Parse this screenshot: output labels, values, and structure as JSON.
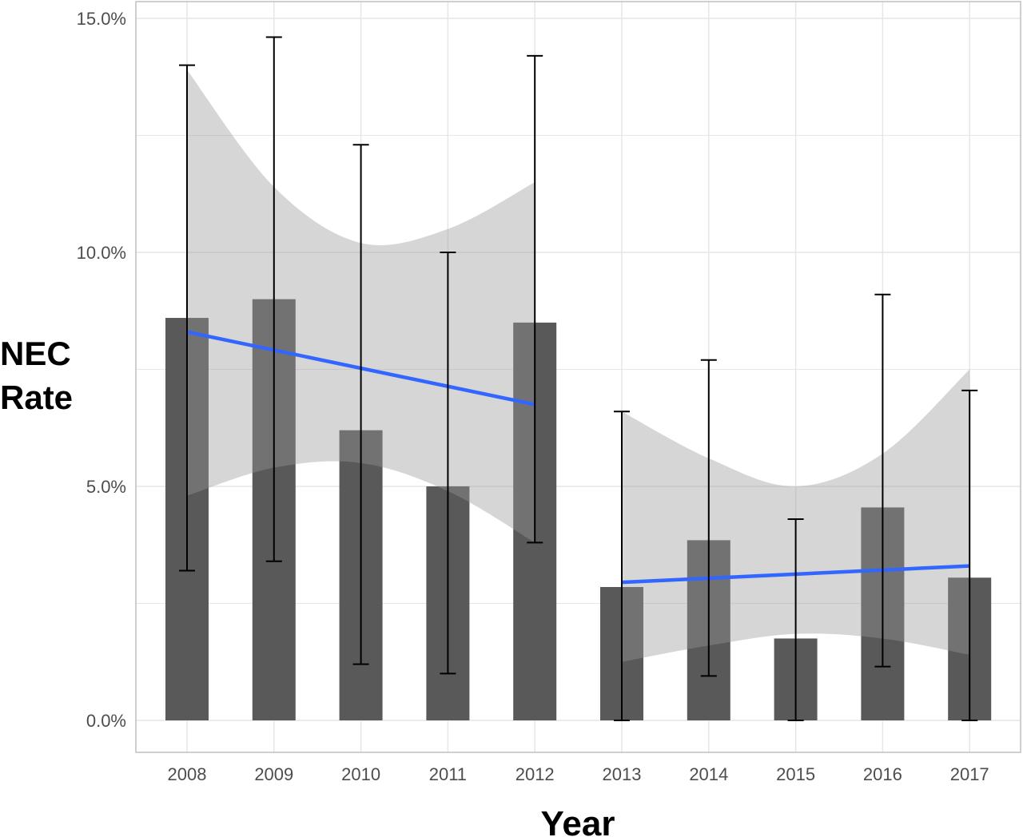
{
  "chart_data": {
    "type": "bar",
    "xlabel": "Year",
    "ylabel": "NEC Rate",
    "ylabel_lines": [
      "NEC",
      "Rate"
    ],
    "ylim": [
      -0.7,
      15.3
    ],
    "y_ticks": [
      0,
      5,
      10,
      15
    ],
    "y_tick_labels": [
      "0.0%",
      "5.0%",
      "10.0%",
      "15.0%"
    ],
    "grid": true,
    "categories": [
      "2008",
      "2009",
      "2010",
      "2011",
      "2012",
      "2013",
      "2014",
      "2015",
      "2016",
      "2017"
    ],
    "values": [
      8.6,
      9.0,
      6.2,
      5.0,
      8.5,
      2.85,
      3.85,
      1.75,
      4.55,
      3.05
    ],
    "error_bars": {
      "lower": [
        3.2,
        3.4,
        1.2,
        1.0,
        3.8,
        0.0,
        0.95,
        0.0,
        1.15,
        0.0
      ],
      "upper": [
        14.0,
        14.6,
        12.3,
        10.0,
        14.2,
        6.6,
        7.7,
        4.3,
        9.1,
        7.05
      ]
    },
    "trend_segments": [
      {
        "x": [
          "2008",
          "2012"
        ],
        "fit": [
          8.3,
          6.75
        ],
        "ci_lower": [
          4.8,
          5.4,
          5.5,
          4.9,
          3.8
        ],
        "ci_upper": [
          13.9,
          11.4,
          10.2,
          10.5,
          11.5
        ]
      },
      {
        "x": [
          "2013",
          "2017"
        ],
        "fit": [
          2.95,
          3.3
        ],
        "ci_lower": [
          1.25,
          1.6,
          1.85,
          1.75,
          1.4
        ],
        "ci_upper": [
          6.6,
          5.6,
          5.0,
          5.7,
          7.5
        ]
      }
    ],
    "colors": {
      "bar": "#595959",
      "trend_line": "#3366ff",
      "ci_band": "#999999",
      "error_bar": "#000000",
      "grid": "#e6e6e6",
      "panel_border": "#bfbfbf"
    }
  }
}
